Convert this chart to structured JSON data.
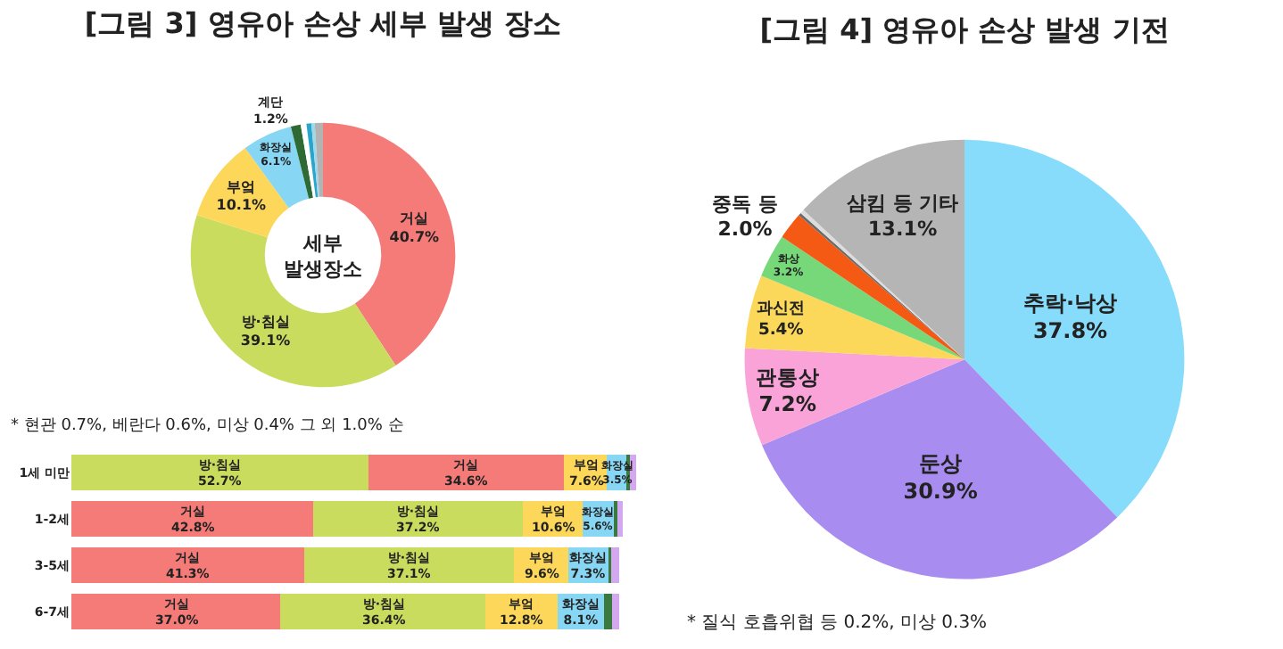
{
  "chart_data": [
    {
      "type": "donut",
      "title": "[그림 3] 영유아 손상 세부 발생 장소",
      "categories": [
        "거실",
        "방·침실",
        "부엌",
        "화장실",
        "계단",
        null,
        null,
        null,
        null
      ],
      "values": [
        40.7,
        39.1,
        10.1,
        6.1,
        1.2,
        0.7,
        0.6,
        0.4,
        1.0
      ],
      "value_labels": [
        "40.7%",
        "39.1%",
        "10.1%",
        "6.1%",
        "1.2%",
        null,
        null,
        null,
        null
      ],
      "colors": [
        "#f47b78",
        "#c9dc5e",
        "#fcd75a",
        "#86d6f4",
        "#2e6b34",
        "#ffffff",
        "#2aa6cc",
        "#9fd8ea",
        "#b3b3b3"
      ],
      "annotations": [
        "세부\n발생장소",
        "* 현관 0.7%, 베란다 0.6%, 미상 0.4% 그 외 1.0% 순"
      ]
    },
    {
      "type": "bar",
      "orientation": "horizontal",
      "stacked": true,
      "categories": [
        "1세 미만",
        "1-2세",
        "3-5세",
        "6-7세"
      ],
      "series": [
        {
          "values": [
            52.7,
            42.8,
            41.3,
            37.0
          ],
          "colors": [
            "#c9dc5e",
            "#f47b78",
            "#f47b78",
            "#f47b78"
          ],
          "value_labels": [
            "방·침실\n52.7%",
            "거실\n42.8%",
            "거실\n41.3%",
            "거실\n37.0%"
          ]
        },
        {
          "values": [
            34.6,
            37.2,
            37.1,
            36.4
          ],
          "colors": [
            "#f47b78",
            "#c9dc5e",
            "#c9dc5e",
            "#c9dc5e"
          ],
          "value_labels": [
            "거실\n34.6%",
            "방·침실\n37.2%",
            "방·침실\n37.1%",
            "방·침실\n36.4%"
          ]
        },
        {
          "values": [
            7.6,
            10.6,
            9.6,
            12.8
          ],
          "colors": [
            "#fcd75a",
            "#fcd75a",
            "#fcd75a",
            "#fcd75a"
          ],
          "value_labels": [
            "부엌\n7.6%",
            "부엌\n10.6%",
            "부엌\n9.6%",
            "부엌\n12.8%"
          ]
        },
        {
          "values": [
            3.5,
            5.6,
            7.3,
            8.1
          ],
          "colors": [
            "#86d6f4",
            "#86d6f4",
            "#86d6f4",
            "#86d6f4"
          ],
          "value_labels": [
            "화장실\n3.5%",
            "화장실\n5.6%",
            "화장실\n7.3%",
            "화장실\n8.1%"
          ]
        },
        {
          "values": [
            0.6,
            0.5,
            0.3,
            1.5
          ],
          "colors": [
            "#3a7a3e",
            "#3a7a3e",
            "#3a7a3e",
            "#3a7a3e"
          ]
        },
        {
          "values": [
            1.0,
            1.0,
            1.5,
            1.2
          ],
          "colors": [
            "#d4a8f0",
            "#d4a8f0",
            "#d4a8f0",
            "#d4a8f0"
          ]
        }
      ]
    },
    {
      "type": "pie",
      "title": "[그림 4] 영유아 손상 발생 기전",
      "categories": [
        "추락·낙상",
        "둔상",
        "관통상",
        "과신전",
        "화상",
        "중독 등",
        null,
        null,
        "삼킴 등 기타"
      ],
      "values": [
        37.8,
        30.9,
        7.2,
        5.4,
        3.2,
        2.0,
        0.2,
        0.3,
        13.1
      ],
      "value_labels": [
        "37.8%",
        "30.9%",
        "7.2%",
        "5.4%",
        "3.2%",
        "2.0%",
        null,
        null,
        "13.1%"
      ],
      "colors": [
        "#86dcfa",
        "#a98cf0",
        "#f9a3d8",
        "#fcd85a",
        "#77d87a",
        "#f45a14",
        "#6a6a6a",
        "#dddddd",
        "#b5b5b5"
      ],
      "annotations": [
        "* 질식 호흡위협 등 0.2%, 미상 0.3%"
      ]
    }
  ]
}
